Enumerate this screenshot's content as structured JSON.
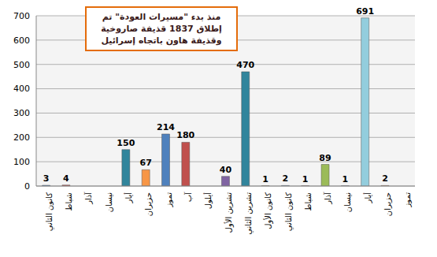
{
  "chart_data": {
    "type": "bar",
    "annotation": [
      "منذ بدء \"مسيرات العودة\" تم",
      "إطلاق 1837 قذيفة صاروخية",
      "وقذيفة هاون باتجاه إسرائيل"
    ],
    "categories": [
      "كانون الثاني",
      "شباط",
      "آذار",
      "نيسان",
      "أيار",
      "حزيران",
      "تموز",
      "آب",
      "أيلول",
      "تشرين الأول",
      "تشرين الثاني",
      "كانون الأول",
      "كانون الثاني",
      "شباط",
      "آذار",
      "نيسان",
      "أيار",
      "حزيران",
      "تموز"
    ],
    "values": [
      3,
      4,
      0,
      0,
      150,
      67,
      214,
      180,
      0,
      40,
      470,
      1,
      2,
      1,
      89,
      1,
      691,
      2,
      0
    ],
    "colors": [
      "#4f81bd",
      "#c0504d",
      "#9bbb59",
      "#8064a2",
      "#31859c",
      "#f79646",
      "#4f81bd",
      "#c0504d",
      "#9bbb59",
      "#8064a2",
      "#31859c",
      "#f79646",
      "#4f81bd",
      "#c0504d",
      "#9bbb59",
      "#8064a2",
      "#93cddd",
      "#f79646",
      "#4f81bd"
    ],
    "ylim": [
      0,
      700
    ],
    "yticks": [
      0,
      100,
      200,
      300,
      400,
      500,
      600,
      700
    ],
    "grid": true,
    "data_labels": true
  }
}
